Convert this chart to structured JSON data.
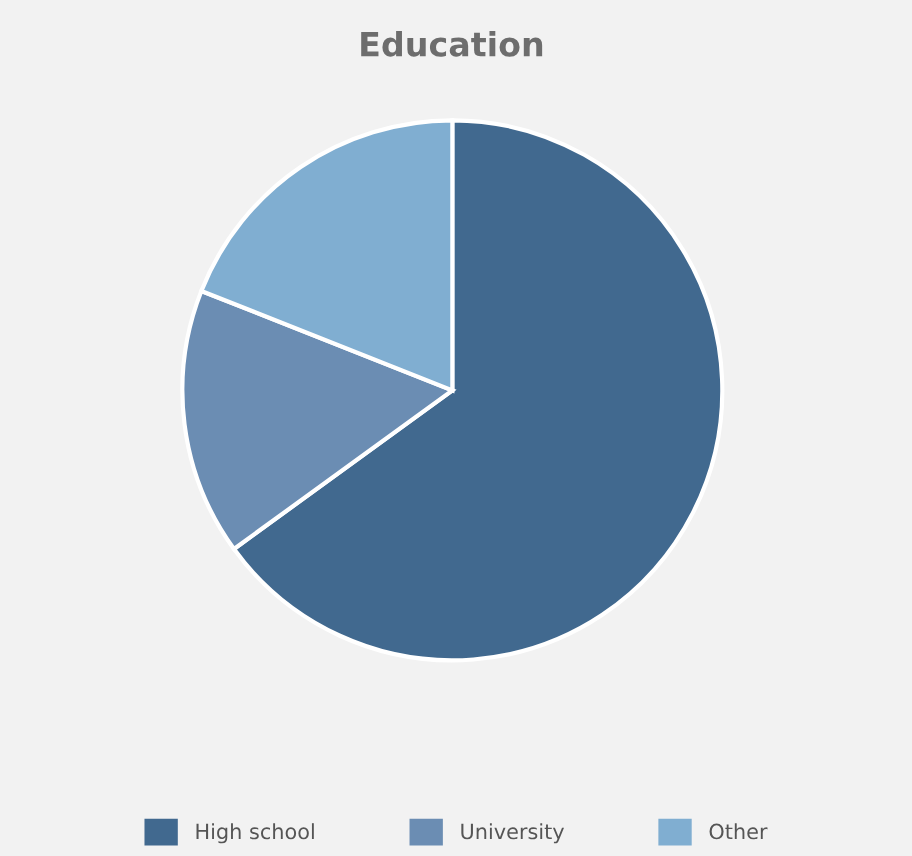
{
  "chart_data": {
    "type": "pie",
    "title": "Education",
    "categories": [
      "High school",
      "University",
      "Other"
    ],
    "values": [
      65,
      16,
      19
    ],
    "colors": [
      "#41698f",
      "#6b8db3",
      "#80aed1"
    ],
    "legend": "bottom"
  }
}
